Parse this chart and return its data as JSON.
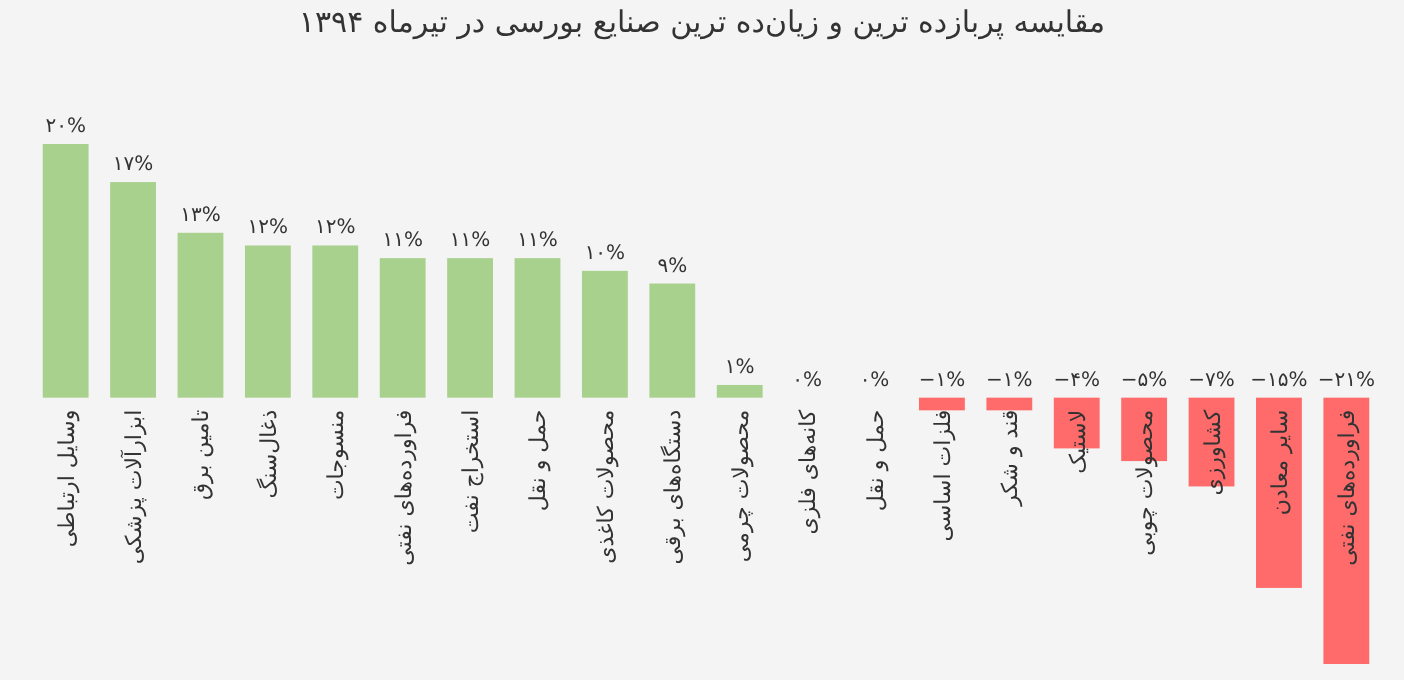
{
  "chart_data": {
    "type": "bar",
    "title": "مقایسه پربازده ترین و زیان‌ده ترین صنایع بورسی در  تیرماه ۱۳۹۴",
    "categories": [
      "وسایل ارتباطی",
      "ابزارآلات پزشکی",
      "تامین برق",
      "ذغال‌سنگ",
      "منسوجات",
      "فراورده‌های نفتی",
      "استخراج نفت",
      "حمل و نقل",
      "محصولات کاغذی",
      "دستگاه‌های برقی",
      "محصولات چرمی",
      "کانه‌های فلزی",
      "حمل و نقل",
      "فلزات اساسی",
      "قند و شکر",
      "لاستیک",
      "محصولات چوبی",
      "کشاورزی",
      "سایر معادن",
      "فراورده‌های نفتی"
    ],
    "values": [
      20,
      17,
      13,
      12,
      12,
      11,
      11,
      11,
      10,
      9,
      1,
      0,
      0,
      -1,
      -1,
      -4,
      -5,
      -7,
      -15,
      -21
    ],
    "colors": [
      "#a9d18e",
      "#a9d18e",
      "#a9d18e",
      "#a9d18e",
      "#a9d18e",
      "#a9d18e",
      "#a9d18e",
      "#a9d18e",
      "#a9d18e",
      "#a9d18e",
      "#a9d18e",
      "#a9d18e",
      "#a9d18e",
      "#ff6b6b",
      "#ff6b6b",
      "#ff6b6b",
      "#ff6b6b",
      "#ff6b6b",
      "#ff6b6b",
      "#ff6b6b"
    ],
    "value_labels": [
      "۲۰%",
      "۱۷%",
      "۱۳%",
      "۱۲%",
      "۱۲%",
      "۱۱%",
      "۱۱%",
      "۱۱%",
      "۱۰%",
      "۹%",
      "۱%",
      "۰%",
      "۰%",
      "−۱%",
      "−۱%",
      "−۴%",
      "−۵%",
      "−۷%",
      "−۱۵%",
      "−۲۱%"
    ]
  }
}
